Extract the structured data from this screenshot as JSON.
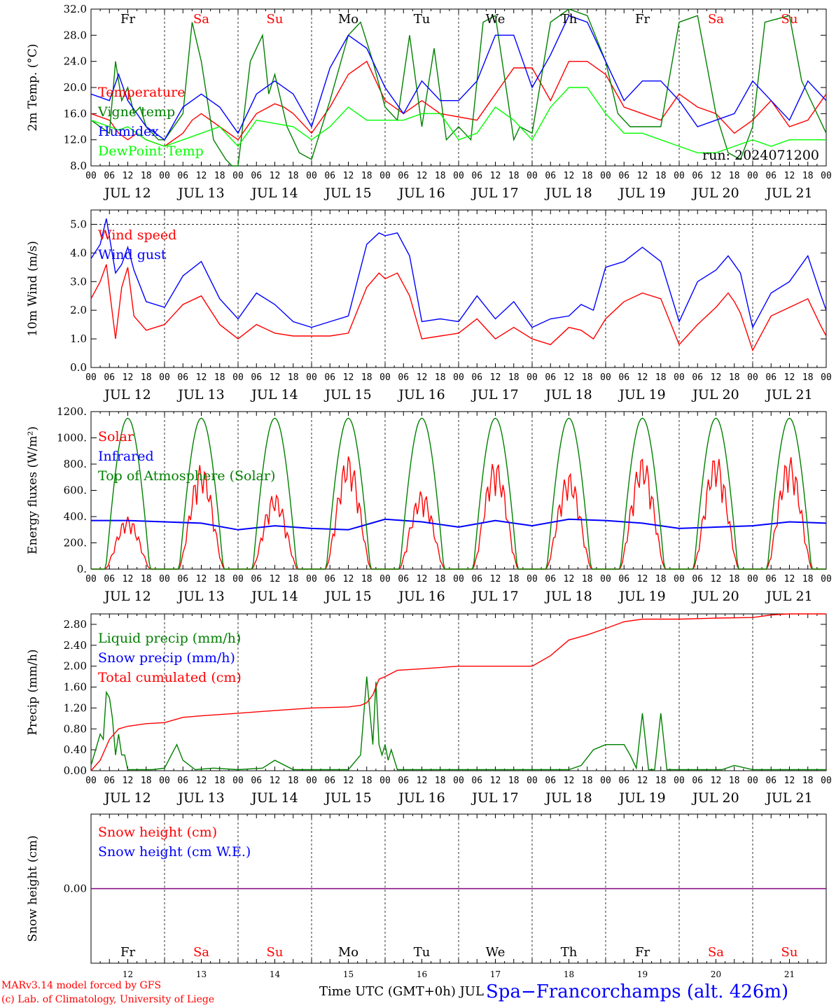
{
  "days": [
    "JUL 12",
    "JUL 13",
    "JUL 14",
    "JUL 15",
    "JUL 16",
    "JUL 17",
    "JUL 18",
    "JUL 19",
    "JUL 20",
    "JUL 21"
  ],
  "weekdays": [
    "Fr",
    "Sa",
    "Su",
    "Mo",
    "Tu",
    "We",
    "Th",
    "Fr",
    "Sa",
    "Su"
  ],
  "weekday_colors": [
    "#000000",
    "#ff0000",
    "#ff0000",
    "#000000",
    "#000000",
    "#000000",
    "#000000",
    "#000000",
    "#ff0000",
    "#ff0000"
  ],
  "day_numbers": [
    "12",
    "13",
    "14",
    "15",
    "16",
    "17",
    "18",
    "19",
    "20",
    "21"
  ],
  "hour_ticks": [
    "00",
    "06",
    "12",
    "18"
  ],
  "chart_data": [
    {
      "type": "line",
      "ylabel": "2m Temp. (°C)",
      "ylim": [
        8,
        32
      ],
      "yticks": [
        "8.0",
        "12.0",
        "16.0",
        "20.0",
        "24.0",
        "28.0",
        "32.0"
      ],
      "annotation": "run: 2024071200",
      "x_unit": "hours since JUL 12 00 UTC",
      "series": [
        {
          "name": "Temperature",
          "color": "#ff0000",
          "x": [
            0,
            6,
            9,
            12,
            15,
            18,
            24,
            30,
            33,
            36,
            42,
            48,
            54,
            60,
            63,
            66,
            72,
            78,
            84,
            90,
            96,
            102,
            108,
            114,
            120,
            126,
            132,
            138,
            144,
            150,
            156,
            162,
            168,
            174,
            180,
            186,
            192,
            198,
            204,
            210,
            216,
            222,
            228,
            234,
            240
          ],
          "y": [
            16,
            15,
            13,
            12,
            13,
            12,
            11,
            13,
            15,
            16,
            14,
            12,
            16,
            17.5,
            17,
            16,
            13,
            17,
            22,
            24,
            18,
            16,
            18,
            16,
            15.5,
            15,
            19,
            23,
            23,
            18,
            24,
            24,
            22,
            17,
            16,
            15,
            19,
            17,
            16,
            13,
            15,
            18,
            14,
            15,
            19
          ]
        },
        {
          "name": "Vigne temp",
          "color": "#008000",
          "x": [
            0,
            6,
            8,
            10,
            12,
            14,
            16,
            18,
            22,
            24,
            30,
            33,
            36,
            40,
            44,
            46,
            48,
            52,
            56,
            58,
            60,
            64,
            68,
            72,
            78,
            84,
            88,
            92,
            96,
            100,
            104,
            108,
            112,
            116,
            120,
            124,
            128,
            132,
            138,
            140,
            144,
            150,
            156,
            162,
            168,
            172,
            176,
            180,
            186,
            192,
            198,
            204,
            208,
            212,
            216,
            220,
            228,
            232,
            236,
            240
          ],
          "y": [
            15,
            13,
            24,
            18,
            20,
            16,
            17,
            14,
            12,
            12,
            16,
            30,
            24,
            12,
            9,
            8,
            8,
            24,
            28,
            19,
            22,
            14,
            10,
            9,
            18,
            28,
            30,
            24,
            17,
            15,
            28,
            14,
            26,
            12,
            14,
            12,
            30,
            31,
            12,
            14,
            13,
            30,
            32,
            31,
            24,
            16,
            14,
            14,
            14,
            30,
            31,
            16,
            10,
            9,
            14,
            30,
            31,
            21,
            17,
            13
          ]
        },
        {
          "name": "Humidex",
          "color": "#0000ff",
          "x": [
            0,
            6,
            9,
            12,
            15,
            18,
            24,
            30,
            36,
            42,
            48,
            54,
            60,
            66,
            72,
            78,
            84,
            90,
            96,
            102,
            108,
            114,
            120,
            126,
            132,
            138,
            144,
            150,
            156,
            162,
            168,
            174,
            180,
            186,
            192,
            198,
            204,
            210,
            216,
            222,
            228,
            234,
            240
          ],
          "y": [
            19,
            18,
            22,
            18,
            16,
            14,
            12,
            17,
            19,
            17,
            13,
            19,
            21,
            19,
            14,
            23,
            28,
            26,
            20,
            16,
            21,
            18,
            18,
            21,
            28,
            28,
            20,
            25,
            31,
            30,
            24,
            18,
            21,
            21,
            18,
            14,
            15,
            16,
            21,
            18,
            15,
            21,
            18
          ]
        },
        {
          "name": "DewPoint Temp",
          "color": "#00ff00",
          "x": [
            0,
            6,
            9,
            12,
            15,
            18,
            24,
            30,
            36,
            42,
            48,
            54,
            60,
            66,
            72,
            78,
            84,
            90,
            96,
            102,
            108,
            114,
            120,
            126,
            132,
            138,
            144,
            150,
            156,
            162,
            168,
            174,
            180,
            186,
            192,
            198,
            204,
            210,
            216,
            222,
            228,
            234,
            240
          ],
          "y": [
            15,
            14,
            13.5,
            14,
            13,
            12,
            11,
            12,
            13,
            14,
            11,
            15,
            14.5,
            14,
            12,
            14,
            17,
            15,
            15,
            15,
            16,
            16,
            12,
            13,
            17,
            15,
            12,
            17,
            20,
            20,
            16,
            13,
            13,
            12,
            11,
            10,
            10,
            11,
            12,
            11,
            12,
            12,
            12
          ]
        }
      ]
    },
    {
      "type": "line",
      "ylabel": "10m Wind (m/s)",
      "ylim": [
        0,
        5.5
      ],
      "yticks": [
        "0.0",
        "1.0",
        "2.0",
        "3.0",
        "4.0",
        "5.0"
      ],
      "x_unit": "hours since JUL 12 00 UTC",
      "series": [
        {
          "name": "Wind speed",
          "color": "#ff0000",
          "x": [
            0,
            3,
            5,
            8,
            10,
            12,
            14,
            18,
            24,
            30,
            36,
            42,
            48,
            54,
            60,
            66,
            72,
            78,
            84,
            90,
            94,
            96,
            100,
            104,
            108,
            114,
            120,
            126,
            132,
            138,
            144,
            150,
            156,
            160,
            164,
            168,
            174,
            180,
            186,
            192,
            198,
            204,
            208,
            210,
            212,
            216,
            222,
            228,
            234,
            238,
            240
          ],
          "y": [
            2.4,
            3.0,
            3.6,
            1.0,
            2.8,
            3.5,
            1.8,
            1.3,
            1.5,
            2.2,
            2.5,
            1.5,
            1.0,
            1.5,
            1.2,
            1.1,
            1.1,
            1.1,
            1.2,
            2.8,
            3.3,
            3.1,
            3.3,
            2.5,
            1.0,
            1.1,
            1.2,
            1.7,
            1.0,
            1.4,
            1.0,
            0.8,
            1.4,
            1.3,
            1.0,
            1.7,
            2.3,
            2.6,
            2.4,
            0.8,
            1.5,
            2.1,
            2.6,
            2.3,
            1.9,
            0.6,
            1.8,
            2.1,
            2.4,
            1.5,
            1.1
          ]
        },
        {
          "name": "Wind gust",
          "color": "#0000ff",
          "x": [
            0,
            3,
            5,
            8,
            10,
            12,
            14,
            18,
            24,
            30,
            36,
            42,
            48,
            54,
            60,
            66,
            72,
            78,
            84,
            90,
            94,
            96,
            100,
            104,
            108,
            114,
            120,
            126,
            132,
            138,
            144,
            150,
            156,
            160,
            164,
            168,
            174,
            180,
            186,
            192,
            198,
            204,
            208,
            210,
            212,
            216,
            222,
            228,
            234,
            238,
            240
          ],
          "y": [
            3.8,
            4.3,
            5.2,
            3.3,
            3.6,
            4.2,
            3.4,
            2.3,
            2.1,
            3.2,
            3.7,
            2.4,
            1.7,
            2.6,
            2.2,
            1.6,
            1.4,
            1.6,
            1.8,
            4.3,
            4.7,
            4.6,
            4.7,
            3.9,
            1.6,
            1.7,
            1.6,
            2.5,
            1.7,
            2.3,
            1.4,
            1.7,
            1.8,
            2.2,
            2.0,
            3.5,
            3.7,
            4.2,
            3.7,
            1.6,
            3.0,
            3.4,
            3.9,
            3.6,
            3.3,
            1.4,
            2.6,
            3.0,
            3.9,
            2.6,
            2.0
          ]
        }
      ]
    },
    {
      "type": "line",
      "ylabel": "Energy fluxes (W/m²)",
      "ylim": [
        0,
        1200
      ],
      "yticks": [
        "0.",
        "200.",
        "400.",
        "600.",
        "800.",
        "1000.",
        "1200."
      ],
      "x_unit": "hours since JUL 12 00 UTC",
      "series": [
        {
          "name": "Solar",
          "color": "#ff0000",
          "peaks": [
            400,
            800,
            580,
            870,
            600,
            830,
            740,
            860,
            870,
            860
          ]
        },
        {
          "name": "Infrared",
          "color": "#0000ff",
          "x": [
            0,
            12,
            24,
            36,
            48,
            60,
            72,
            84,
            96,
            108,
            120,
            132,
            144,
            156,
            168,
            180,
            192,
            204,
            216,
            228,
            240
          ],
          "y": [
            370,
            370,
            360,
            350,
            300,
            330,
            310,
            300,
            380,
            360,
            320,
            370,
            330,
            380,
            370,
            350,
            310,
            320,
            330,
            360,
            350
          ]
        },
        {
          "name": "Top of Atmosphere (Solar)",
          "color": "#008000",
          "peak": 1150
        }
      ]
    },
    {
      "type": "line",
      "ylabel": "Precip (mm/h)",
      "ylim": [
        0,
        3.0
      ],
      "yticks": [
        "0.00",
        "0.40",
        "0.80",
        "1.20",
        "1.60",
        "2.00",
        "2.40",
        "2.80"
      ],
      "x_unit": "hours since JUL 12 00 UTC",
      "series": [
        {
          "name": "Liquid precip (mm/h)",
          "color": "#008000",
          "x": [
            0,
            3,
            4,
            5,
            6,
            7,
            8,
            9,
            10,
            11,
            12,
            14,
            16,
            20,
            24,
            28,
            30,
            34,
            40,
            48,
            56,
            60,
            66,
            72,
            84,
            88,
            90,
            92,
            93,
            94,
            95,
            96,
            97,
            98,
            100,
            102,
            104,
            108,
            120,
            144,
            156,
            160,
            164,
            168,
            170,
            172,
            174,
            176,
            178,
            180,
            182,
            184,
            186,
            188,
            190,
            192,
            200,
            206,
            210,
            216,
            228,
            240
          ],
          "y": [
            0.1,
            0.7,
            0.6,
            1.5,
            1.4,
            1.0,
            0.3,
            0.7,
            0.3,
            0.3,
            0.02,
            0.02,
            0.02,
            0.02,
            0.05,
            0.5,
            0.2,
            0.02,
            0.05,
            0.02,
            0.05,
            0.2,
            0.02,
            0.02,
            0.02,
            0.3,
            1.8,
            0.5,
            1.7,
            0.5,
            0.3,
            0.5,
            0.2,
            0.4,
            0.02,
            0.02,
            0.02,
            0.02,
            0.02,
            0.02,
            0.02,
            0.1,
            0.4,
            0.5,
            0.5,
            0.5,
            0.5,
            0.3,
            0.05,
            1.1,
            0.02,
            0.02,
            1.1,
            0.02,
            0.02,
            0.02,
            0.02,
            0.02,
            0.1,
            0.02,
            0.02,
            0.02
          ]
        },
        {
          "name": "Snow precip (mm/h)",
          "color": "#0000ff",
          "x": [],
          "y": []
        },
        {
          "name": "Total cumulated (cm)",
          "color": "#ff0000",
          "x": [
            0,
            3,
            6,
            9,
            12,
            18,
            24,
            30,
            36,
            48,
            60,
            72,
            84,
            88,
            90,
            92,
            94,
            96,
            100,
            108,
            120,
            132,
            144,
            150,
            156,
            162,
            168,
            174,
            180,
            186,
            192,
            204,
            216,
            222,
            228,
            240
          ],
          "y": [
            0,
            0.2,
            0.6,
            0.8,
            0.85,
            0.9,
            0.92,
            1.02,
            1.05,
            1.1,
            1.15,
            1.2,
            1.22,
            1.25,
            1.3,
            1.45,
            1.75,
            1.8,
            1.92,
            1.95,
            2.0,
            2.0,
            2.0,
            2.2,
            2.5,
            2.6,
            2.72,
            2.85,
            2.9,
            2.9,
            2.9,
            2.92,
            2.93,
            2.98,
            3.0,
            3.02
          ]
        }
      ]
    },
    {
      "type": "line",
      "ylabel": "Snow height (cm)",
      "ylim": [
        -1,
        1
      ],
      "yticks": [
        "0.00"
      ],
      "x_unit": "hours since JUL 12 00 UTC",
      "series": [
        {
          "name": "Snow height (cm)",
          "color": "#ff0000",
          "x": [
            0,
            240
          ],
          "y": [
            0,
            0
          ]
        },
        {
          "name": "Snow height (cm W.E.)",
          "color": "#0000ff",
          "x": [
            0,
            240
          ],
          "y": [
            0,
            0
          ]
        }
      ]
    }
  ],
  "footer": {
    "model": "MARv3.14 model forced by GFS",
    "lab": "(c) Lab. of Climatology, University of Liege",
    "xaxis_label": "Time UTC (GMT+0h) JUL",
    "station": "Spa−Francorchamps (alt. 426m)"
  }
}
